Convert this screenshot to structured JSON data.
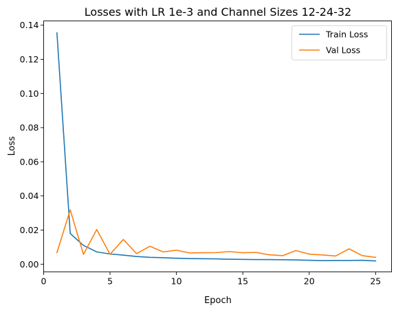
{
  "chart_data": {
    "type": "line",
    "title": "Losses with LR 1e-3 and Channel Sizes 12-24-32",
    "xlabel": "Epoch",
    "ylabel": "Loss",
    "xlim": [
      0,
      26.2
    ],
    "ylim": [
      -0.0045,
      0.1425
    ],
    "xticks": [
      0,
      5,
      10,
      15,
      20,
      25
    ],
    "xtick_labels": [
      "0",
      "5",
      "10",
      "15",
      "20",
      "25"
    ],
    "yticks": [
      0.0,
      0.02,
      0.04,
      0.06,
      0.08,
      0.1,
      0.12,
      0.14
    ],
    "ytick_labels": [
      "0.00",
      "0.02",
      "0.04",
      "0.06",
      "0.08",
      "0.10",
      "0.12",
      "0.14"
    ],
    "grid": false,
    "legend_position": "top-right",
    "x": [
      1,
      2,
      3,
      4,
      5,
      6,
      7,
      8,
      9,
      10,
      11,
      12,
      13,
      14,
      15,
      16,
      17,
      18,
      19,
      20,
      21,
      22,
      23,
      24,
      25
    ],
    "series": [
      {
        "name": "Train Loss",
        "color": "#1f77b4",
        "values": [
          0.1355,
          0.018,
          0.011,
          0.0072,
          0.006,
          0.0053,
          0.0045,
          0.004,
          0.0038,
          0.0035,
          0.0033,
          0.0032,
          0.0031,
          0.0029,
          0.0028,
          0.0027,
          0.0027,
          0.0026,
          0.0025,
          0.0023,
          0.0021,
          0.0022,
          0.0022,
          0.0023,
          0.0019
        ]
      },
      {
        "name": "Val Loss",
        "color": "#ff7f0e",
        "values": [
          0.0068,
          0.0318,
          0.0058,
          0.0203,
          0.0058,
          0.0145,
          0.0062,
          0.0105,
          0.0072,
          0.0082,
          0.0066,
          0.0067,
          0.0068,
          0.0074,
          0.0067,
          0.0069,
          0.0055,
          0.005,
          0.008,
          0.0059,
          0.0054,
          0.0048,
          0.009,
          0.005,
          0.004
        ]
      }
    ]
  }
}
